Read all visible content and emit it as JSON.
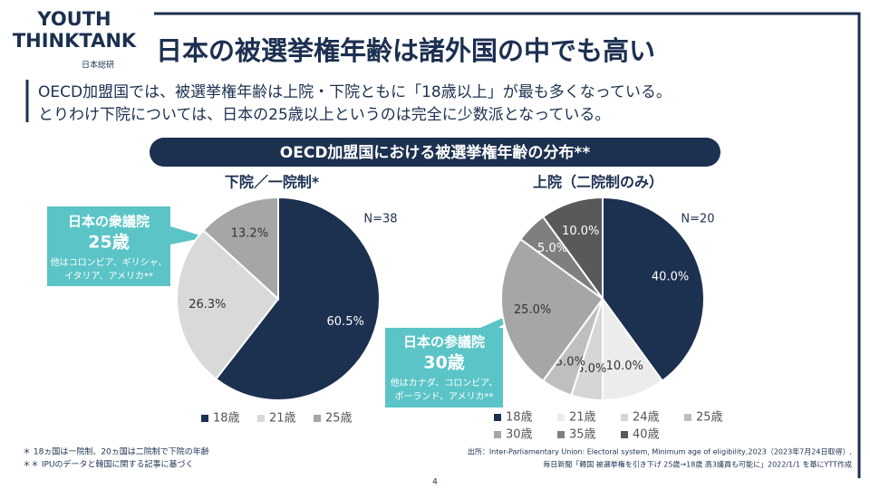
{
  "header": {
    "logo_line1": "YOUTH",
    "logo_line2": "THINKTANK",
    "logo_partner": "日本総研",
    "title": "日本の被選挙権年齢は諸外国の中でも高い"
  },
  "lead": [
    "OECD加盟国では、被選挙権年齢は上院・下院ともに「18歳以上」が最も多くなっている。",
    "とりわけ下院については、日本の25歳以上というのは完全に少数派となっている。"
  ],
  "section_title": "OECD加盟国における被選挙権年齢の分布**",
  "chart_data": [
    {
      "type": "pie",
      "title": "下院／一院制*",
      "n_label": "N=38",
      "categories": [
        "18歳",
        "21歳",
        "25歳"
      ],
      "values": [
        60.5,
        26.3,
        13.2
      ],
      "value_labels": [
        "60.5%",
        "26.3%",
        "13.2%"
      ],
      "colors": [
        "#1c3050",
        "#d9d9d9",
        "#a6a6a6"
      ]
    },
    {
      "type": "pie",
      "title": "上院（二院制のみ）",
      "n_label": "N=20",
      "categories": [
        "18歳",
        "21歳",
        "24歳",
        "25歳",
        "30歳",
        "35歳",
        "40歳"
      ],
      "values": [
        40,
        10,
        5,
        5,
        25,
        5,
        10
      ],
      "value_labels": [
        "40.0%",
        "10.0%",
        "5.0%",
        "5.0%",
        "25.0%",
        "5.0%",
        "10.0%"
      ],
      "colors": [
        "#1c3050",
        "#ececec",
        "#d6d6d6",
        "#bfbfbf",
        "#a6a6a6",
        "#7f7f7f",
        "#595959"
      ]
    }
  ],
  "callouts": [
    {
      "title": "日本の衆議院",
      "age": "25歳",
      "note": [
        "他はコロンビア、ギリシャ、",
        "イタリア、アメリカ**"
      ]
    },
    {
      "title": "日本の参議院",
      "age": "30歳",
      "note": [
        "他はカナダ、コロンビア、",
        "ポーランド、アメリカ**"
      ]
    }
  ],
  "footnotes": [
    "＊ 18ヵ国は一院制、20ヵ国は二院制で下院の年齢",
    "＊＊ IPUのデータと韓国に関する記事に基づく"
  ],
  "source": [
    "出所：Inter-Parliamentary Union: Electoral system, Minimum age of eligibility,2023（2023年7月24日取得）,",
    "毎日新聞「韓国 被選挙権を引き下げ 25歳→18歳 高3議員も可能に」2022/1/1 を基にYTT作成"
  ],
  "page_number": "4"
}
